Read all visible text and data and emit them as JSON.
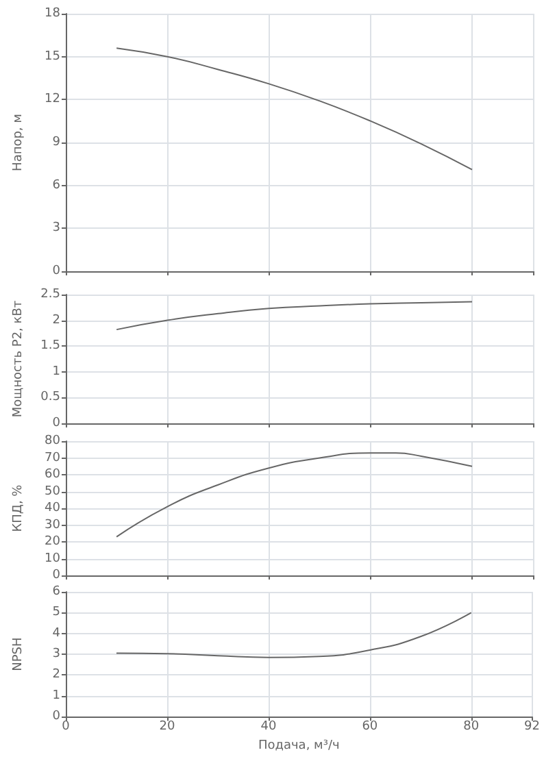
{
  "chart_data": [
    {
      "type": "line",
      "ylabel": "Напор, м",
      "x": [
        10,
        20,
        30,
        40,
        50,
        60,
        70,
        80
      ],
      "series": [
        {
          "color": "#666666",
          "values": [
            15.6,
            15.0,
            14.1,
            13.1,
            11.9,
            10.5,
            8.9,
            7.1
          ]
        }
      ],
      "xlim": [
        0,
        92
      ],
      "xticks": [
        0,
        20,
        40,
        60,
        80,
        92
      ],
      "ylim": [
        0,
        18
      ],
      "yticks": [
        0,
        3,
        6,
        9,
        12,
        15,
        18
      ],
      "grid": true,
      "marker": "none",
      "line_style": "solid",
      "tick_labels": "y"
    },
    {
      "type": "line",
      "ylabel": "Мощность P2, кВт",
      "x": [
        10,
        20,
        30,
        40,
        50,
        60,
        70,
        80
      ],
      "series": [
        {
          "color": "#666666",
          "values": [
            1.82,
            2.0,
            2.13,
            2.23,
            2.28,
            2.32,
            2.34,
            2.36
          ]
        }
      ],
      "xlim": [
        0,
        92
      ],
      "xticks": [
        0,
        20,
        40,
        60,
        80,
        92
      ],
      "ylim": [
        0,
        2.5
      ],
      "yticks": [
        0,
        0.5,
        1,
        1.5,
        2,
        2.5
      ],
      "grid": true,
      "marker": "none",
      "line_style": "solid",
      "tick_labels": "y"
    },
    {
      "type": "line",
      "ylabel": "КПД, %",
      "x": [
        10,
        20,
        30,
        40,
        50,
        60,
        65,
        70,
        80
      ],
      "series": [
        {
          "color": "#666666",
          "values": [
            23,
            41,
            54,
            64,
            70,
            73,
            73,
            71,
            65
          ]
        }
      ],
      "xlim": [
        0,
        92
      ],
      "xticks": [
        0,
        20,
        40,
        60,
        80,
        92
      ],
      "ylim": [
        0,
        80
      ],
      "yticks": [
        0,
        10,
        20,
        30,
        40,
        50,
        60,
        70,
        80
      ],
      "grid": true,
      "marker": "none",
      "line_style": "solid",
      "tick_labels": "y"
    },
    {
      "type": "line",
      "xlabel": "Подача, м³/ч",
      "ylabel": "NPSH",
      "x": [
        10,
        20,
        30,
        40,
        50,
        60,
        70,
        80
      ],
      "series": [
        {
          "color": "#666666",
          "values": [
            3.05,
            3.03,
            2.93,
            2.85,
            2.9,
            3.2,
            3.85,
            5.0
          ]
        }
      ],
      "xlim": [
        0,
        92
      ],
      "xticks": [
        0,
        20,
        40,
        60,
        80,
        92
      ],
      "ylim": [
        0,
        6
      ],
      "yticks": [
        0,
        1,
        2,
        3,
        4,
        5,
        6
      ],
      "grid": true,
      "marker": "none",
      "line_style": "solid"
    }
  ]
}
